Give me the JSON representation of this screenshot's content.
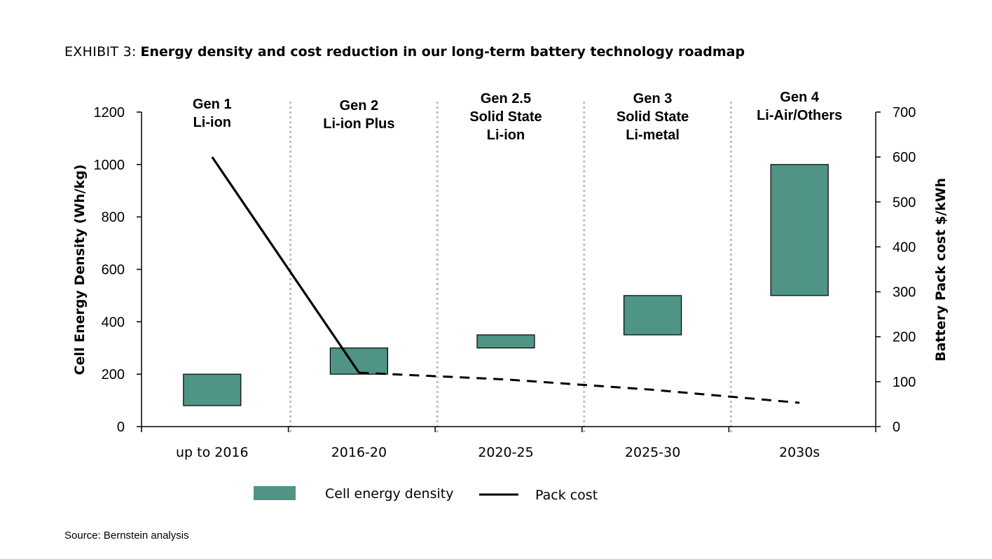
{
  "header": {
    "exhibit_label": "EXHIBIT 3:",
    "title": "Energy density and cost reduction in our long-term battery technology roadmap"
  },
  "source": "Source: Bernstein analysis",
  "colors": {
    "bar_fill": "#4f9485",
    "bar_stroke": "#000000",
    "line": "#000000",
    "divider": "#bfbfbf"
  },
  "chart_data": {
    "type": "bar",
    "categories": [
      "up to 2016",
      "2016-20",
      "2020-25",
      "2025-30",
      "2030s"
    ],
    "generations": [
      [
        "Gen 1",
        "Li-ion"
      ],
      [
        "Gen 2",
        "Li-ion Plus"
      ],
      [
        "Gen 2.5",
        "Solid State",
        "Li-ion"
      ],
      [
        "Gen 3",
        "Solid State",
        "Li-metal"
      ],
      [
        "Gen 4",
        "Li-Air/Others"
      ]
    ],
    "ylabel": "Cell Energy Density (Wh/kg)",
    "ylabel_right": "Battery Pack cost  $/kWh",
    "ylim": [
      0,
      1200
    ],
    "yticks": [
      0,
      200,
      400,
      600,
      800,
      1000,
      1200
    ],
    "ylim_right": [
      0,
      700
    ],
    "yticks_right": [
      0,
      100,
      200,
      300,
      400,
      500,
      600,
      700
    ],
    "series": [
      {
        "name": "Cell energy density",
        "kind": "floating-bar",
        "axis": "left",
        "low": [
          80,
          200,
          300,
          350,
          500
        ],
        "high": [
          200,
          300,
          350,
          500,
          1000
        ]
      },
      {
        "name": "Pack cost",
        "kind": "line",
        "axis": "right",
        "solid_points": [
          [
            0,
            600
          ],
          [
            1,
            120
          ]
        ],
        "dashed_points": [
          [
            1,
            120
          ],
          [
            2,
            105
          ],
          [
            3,
            82
          ],
          [
            4,
            53
          ]
        ]
      }
    ],
    "legend": {
      "placement": "bottom-center",
      "bar_label": "Cell energy density",
      "line_label": "Pack cost"
    }
  }
}
